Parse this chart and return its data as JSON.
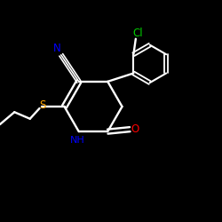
{
  "background_color": "#000000",
  "bond_color": "#ffffff",
  "atom_colors": {
    "N": "#0000ff",
    "S": "#ffa500",
    "O": "#ff0000",
    "Cl": "#00cc00"
  },
  "figsize": [
    2.5,
    2.5
  ],
  "dpi": 100
}
